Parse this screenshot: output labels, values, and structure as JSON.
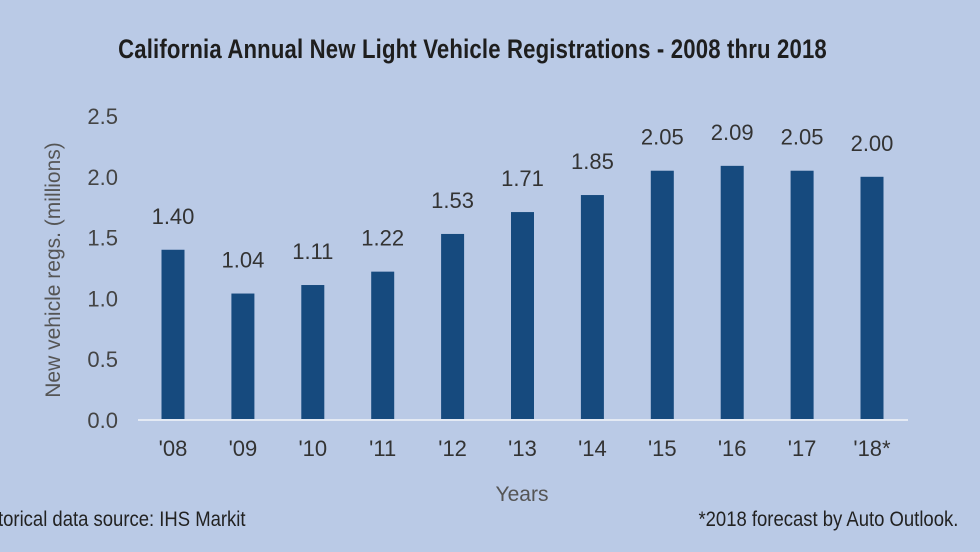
{
  "chart_data": {
    "type": "bar",
    "title": "California Annual New Light Vehicle Registrations - 2008 thru 2018",
    "xlabel": "Years",
    "ylabel": "New vehicle regs. (millions)",
    "categories": [
      "'08",
      "'09",
      "'10",
      "'11",
      "'12",
      "'13",
      "'14",
      "'15",
      "'16",
      "'17",
      "'18*"
    ],
    "values": [
      1.4,
      1.04,
      1.11,
      1.22,
      1.53,
      1.71,
      1.85,
      2.05,
      2.09,
      2.05,
      2.0
    ],
    "data_labels": [
      "1.40",
      "1.04",
      "1.11",
      "1.22",
      "1.53",
      "1.71",
      "1.85",
      "2.05",
      "2.09",
      "2.05",
      "2.00"
    ],
    "ylim": [
      0,
      2.5
    ],
    "yticks": [
      "0.0",
      "0.5",
      "1.0",
      "1.5",
      "2.0",
      "2.5"
    ],
    "grid": false,
    "bar_color": "#164a7e",
    "background": "#bacae6"
  },
  "footnotes": {
    "source": "torical data source: IHS Markit",
    "forecast": "*2018 forecast by Auto Outlook."
  }
}
